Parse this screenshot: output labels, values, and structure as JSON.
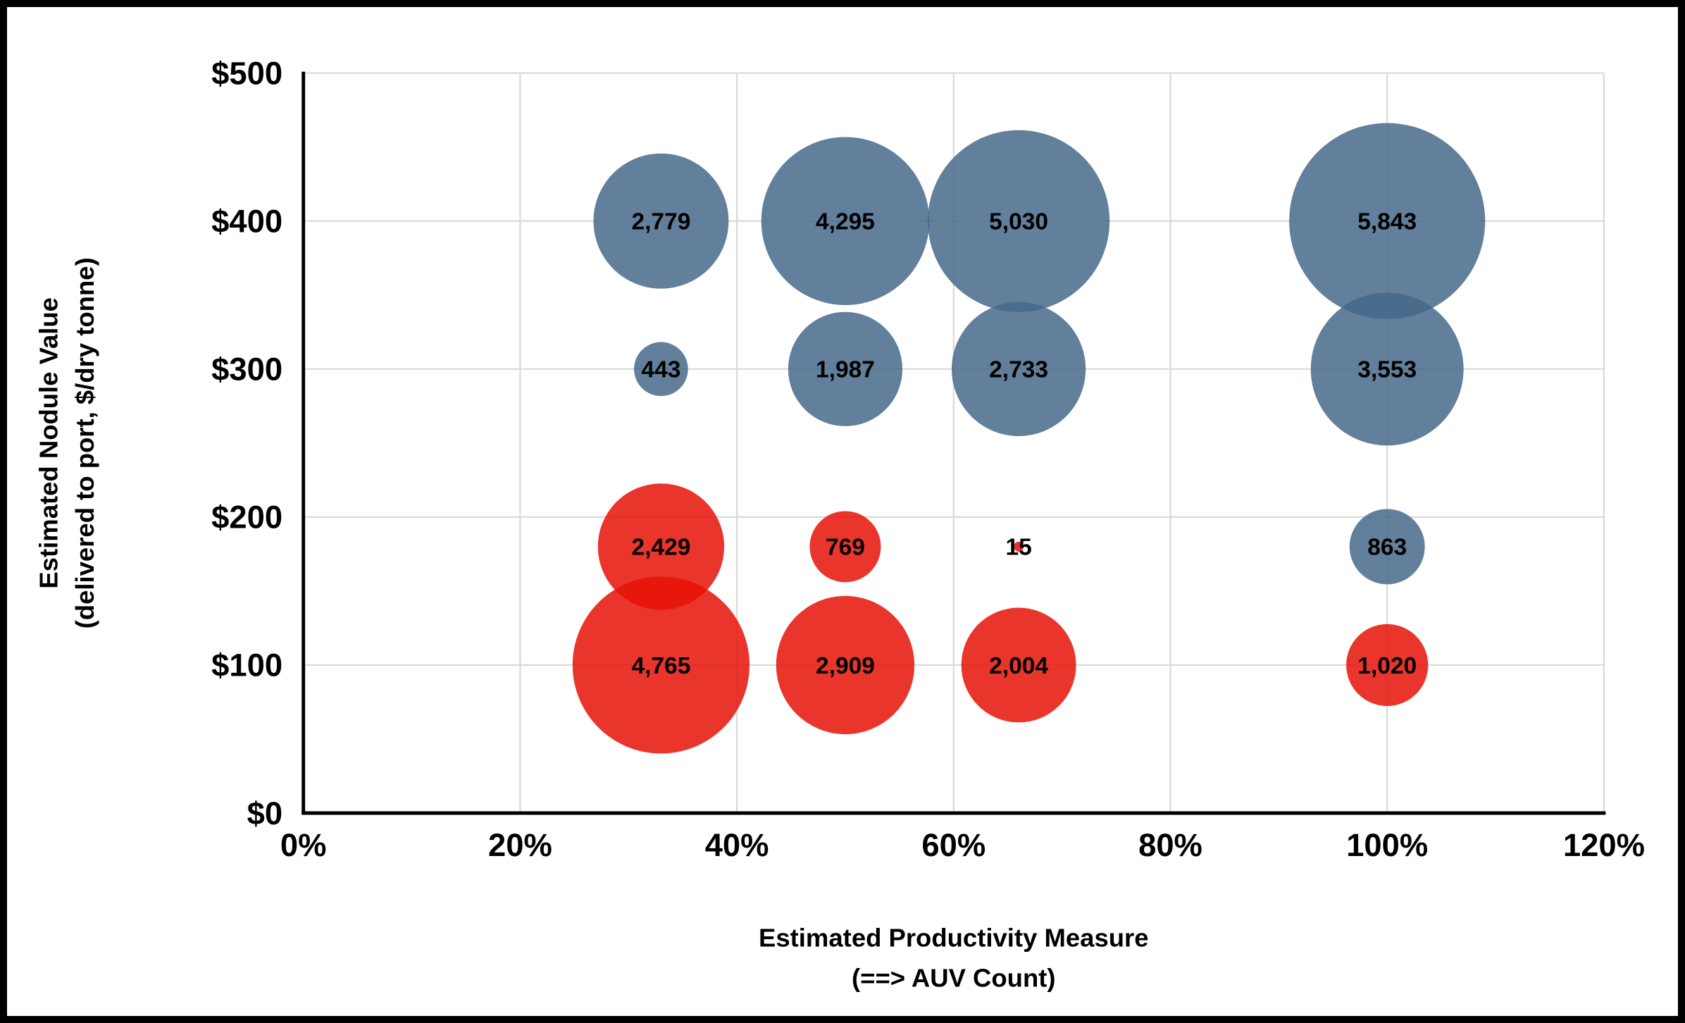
{
  "frame": {
    "background_color": "#ffffff",
    "border_color": "#000000"
  },
  "chart_data": {
    "type": "bubble",
    "title": "",
    "xlabel_lines": [
      "Estimated Productivity Measure",
      "(==> AUV Count)"
    ],
    "ylabel_lines": [
      "Estimated Nodule Value",
      "(delivered to port, $/dry tonne)"
    ],
    "xlim": [
      0,
      120
    ],
    "ylim": [
      0,
      500
    ],
    "grid": true,
    "grid_color": "#D9D9D9",
    "axis_color": "#000000",
    "label_color": "#000000",
    "size_encoding": "area",
    "x_ticks": [
      {
        "value": 0,
        "label": "0%"
      },
      {
        "value": 20,
        "label": "20%"
      },
      {
        "value": 40,
        "label": "40%"
      },
      {
        "value": 60,
        "label": "60%"
      },
      {
        "value": 80,
        "label": "80%"
      },
      {
        "value": 100,
        "label": "100%"
      },
      {
        "value": 120,
        "label": "120%"
      }
    ],
    "y_ticks": [
      {
        "value": 0,
        "label": "$0"
      },
      {
        "value": 100,
        "label": "$100"
      },
      {
        "value": 200,
        "label": "$200"
      },
      {
        "value": 300,
        "label": "$300"
      },
      {
        "value": 400,
        "label": "$400"
      },
      {
        "value": 500,
        "label": "$500"
      }
    ],
    "series": [
      {
        "name": "blue",
        "color": "#46698a",
        "points": [
          {
            "x": 33,
            "y": 400,
            "value": 2779,
            "label": "2,779"
          },
          {
            "x": 50,
            "y": 400,
            "value": 4295,
            "label": "4,295"
          },
          {
            "x": 66,
            "y": 400,
            "value": 5030,
            "label": "5,030"
          },
          {
            "x": 100,
            "y": 400,
            "value": 5843,
            "label": "5,843"
          },
          {
            "x": 33,
            "y": 300,
            "value": 443,
            "label": "443"
          },
          {
            "x": 50,
            "y": 300,
            "value": 1987,
            "label": "1,987"
          },
          {
            "x": 66,
            "y": 300,
            "value": 2733,
            "label": "2,733"
          },
          {
            "x": 100,
            "y": 300,
            "value": 3553,
            "label": "3,553"
          },
          {
            "x": 100,
            "y": 180,
            "value": 863,
            "label": "863"
          }
        ]
      },
      {
        "name": "red",
        "color": "#e61207",
        "points": [
          {
            "x": 33,
            "y": 180,
            "value": 2429,
            "label": "2,429"
          },
          {
            "x": 50,
            "y": 180,
            "value": 769,
            "label": "769"
          },
          {
            "x": 66,
            "y": 180,
            "value": 15,
            "label": "15"
          },
          {
            "x": 33,
            "y": 100,
            "value": 4765,
            "label": "4,765"
          },
          {
            "x": 50,
            "y": 100,
            "value": 2909,
            "label": "2,909"
          },
          {
            "x": 66,
            "y": 100,
            "value": 2004,
            "label": "2,004"
          },
          {
            "x": 100,
            "y": 100,
            "value": 1020,
            "label": "1,020"
          }
        ]
      }
    ]
  }
}
